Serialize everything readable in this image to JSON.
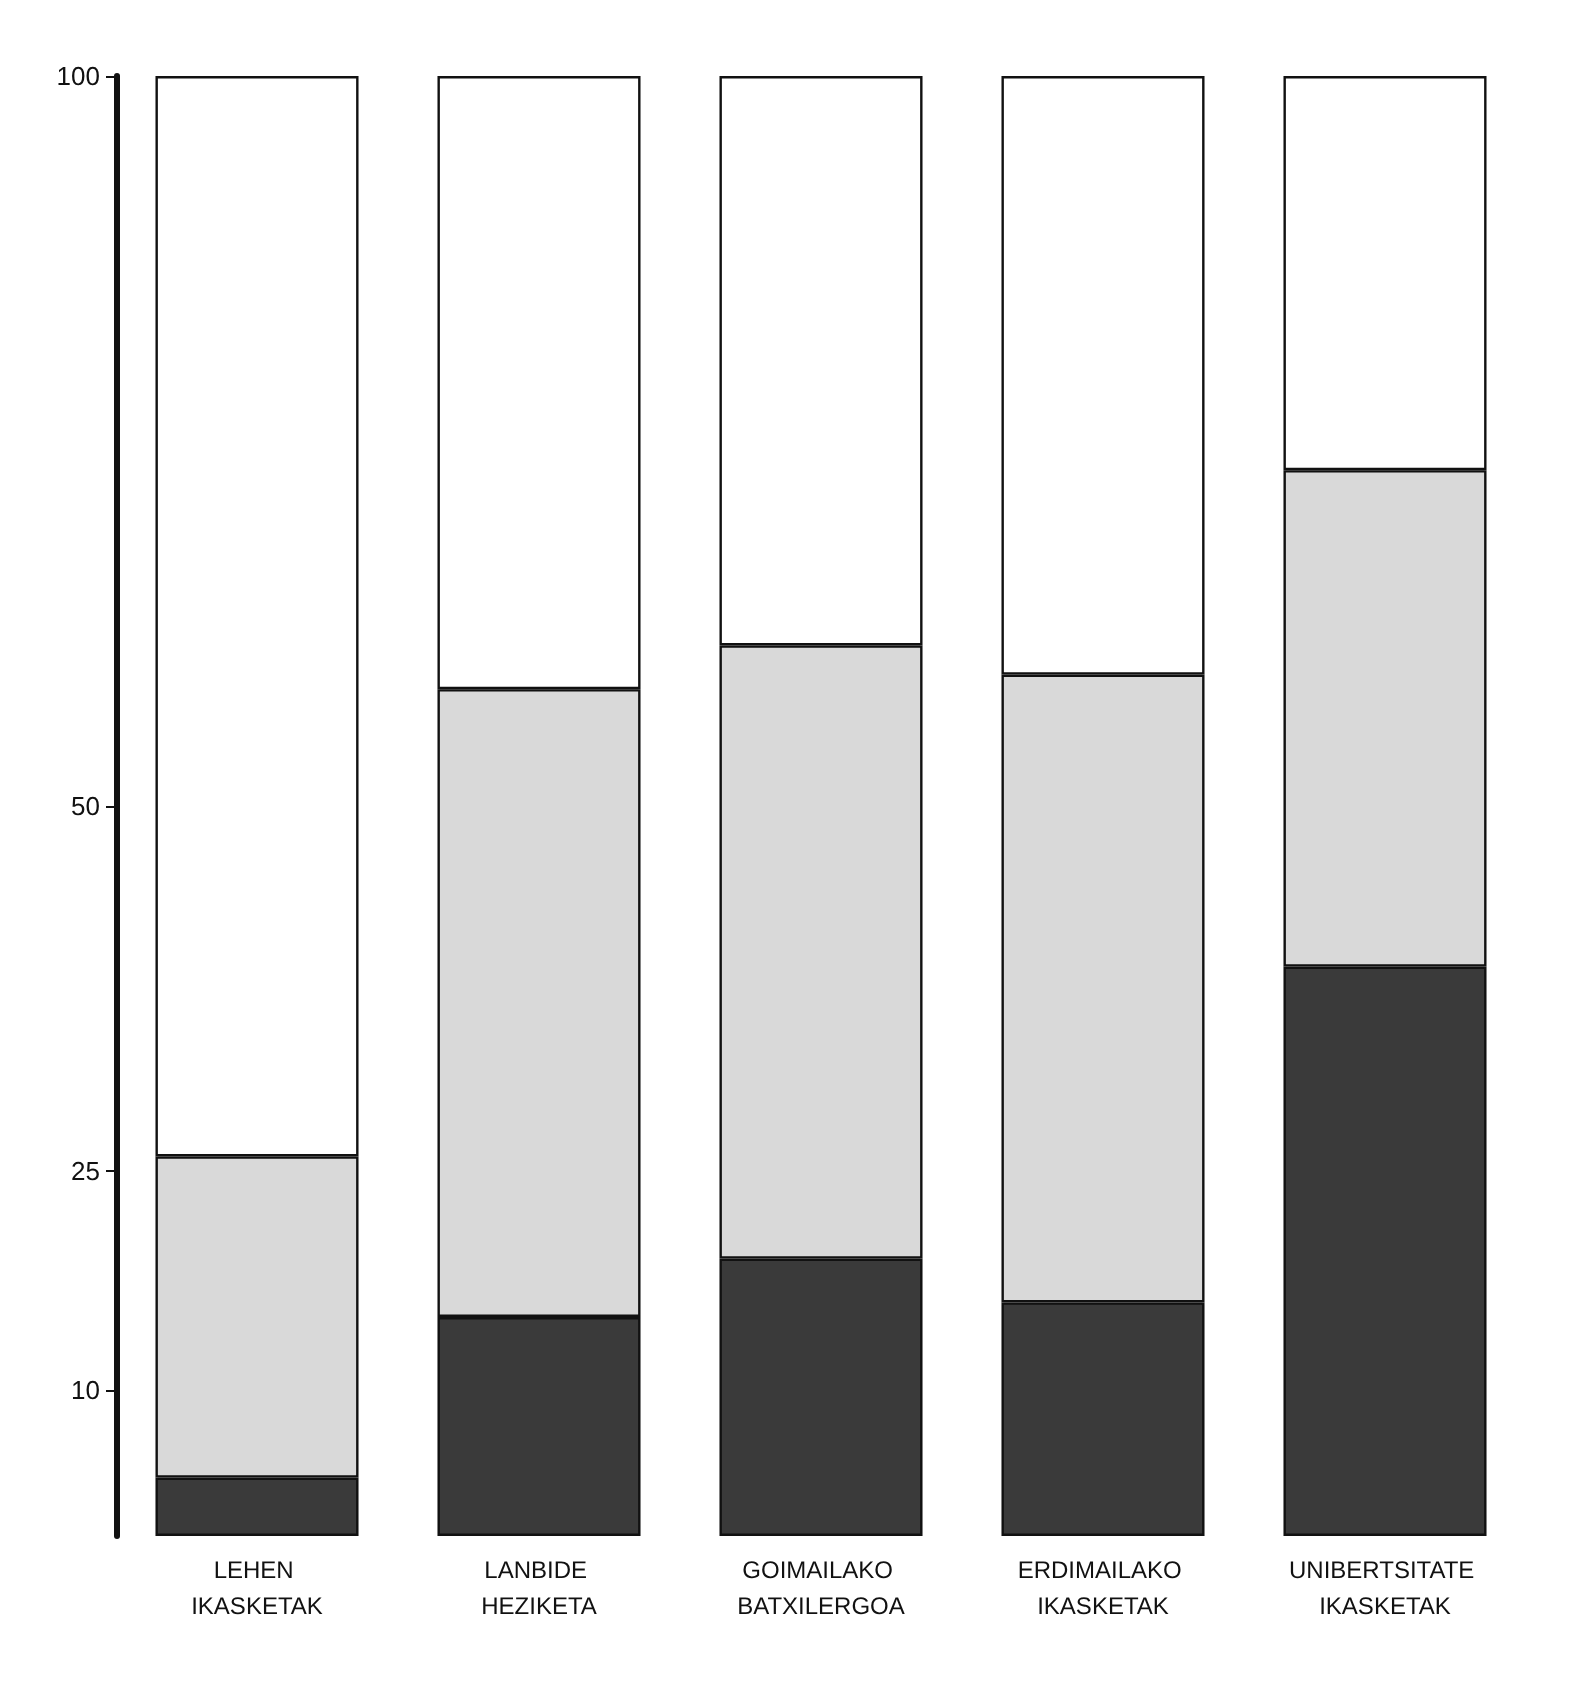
{
  "chart_data": {
    "type": "bar",
    "stacked": true,
    "categories": [
      "LEHEN IKASKETAK",
      "LANBIDE HEZIKETA",
      "GOIMAILAKO BATXILERGOA",
      "ERDIMAILAKO IKASKETAK",
      "UNIBERTSITATE IKASKETAK"
    ],
    "series": [
      {
        "color": "#3a3a3a",
        "values": [
          4,
          15,
          19,
          16,
          39
        ]
      },
      {
        "color": "#d9d9d9",
        "values": [
          22,
          43,
          42,
          43,
          34
        ]
      },
      {
        "color": "#ffffff",
        "values": [
          74,
          42,
          39,
          41,
          27
        ]
      }
    ],
    "ylim": [
      0,
      100
    ],
    "yticks": [
      10,
      25,
      50,
      100
    ],
    "grid": false
  }
}
